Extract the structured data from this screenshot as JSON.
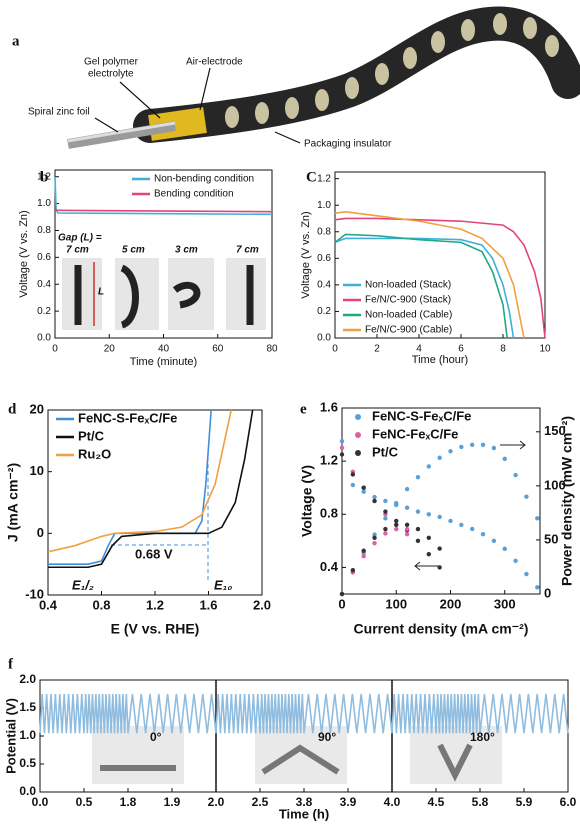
{
  "diagram": {
    "label": "a",
    "texts": [
      "Gel polymer",
      "electrolyte",
      "Air-electrode",
      "Spiral zinc foil",
      "Packaging insulator"
    ]
  },
  "chart_data": [
    {
      "type": "line",
      "label": "b",
      "xlabel": "Time (minute)",
      "ylabel": "Voltage (V vs. Zn)",
      "xlim": [
        0,
        80
      ],
      "xticks": [
        0,
        20,
        40,
        60,
        80
      ],
      "ylim": [
        0,
        1.25
      ],
      "yticks": [
        {
          "value": 0,
          "label": "0.0"
        },
        0.2,
        0.4,
        0.6,
        0.8,
        {
          "value": 1,
          "label": "1.0"
        },
        1.2
      ],
      "legend": "upper right",
      "series": [
        {
          "name": "Non-bending condition",
          "color": "#3fb0d8",
          "x": [
            0,
            0.4,
            1,
            80
          ],
          "values": [
            1.2,
            0.96,
            0.93,
            0.92
          ]
        },
        {
          "name": "Bending condition",
          "color": "#e2457a",
          "x": [
            0,
            80
          ],
          "values": [
            0.95,
            0.94
          ]
        }
      ],
      "annotations": [
        "Gap (L) =",
        "7 cm",
        "5 cm",
        "3 cm",
        "7 cm",
        "L"
      ]
    },
    {
      "type": "line",
      "label": "C",
      "xlabel": "Time (hour)",
      "ylabel": "Voltage (V vs. Zn)",
      "xlim": [
        0,
        10
      ],
      "xticks": [
        0,
        2,
        4,
        6,
        8,
        10
      ],
      "ylim": [
        0,
        1.25
      ],
      "yticks": [
        {
          "value": 0,
          "label": "0.0"
        },
        0.2,
        0.4,
        0.6,
        0.8,
        {
          "value": 1,
          "label": "1.0"
        },
        1.2
      ],
      "legend": "lower left",
      "series": [
        {
          "name": "Non-loaded (Stack)",
          "color": "#3fb0d8",
          "x": [
            0,
            0.5,
            2,
            4,
            6,
            7,
            7.5,
            8,
            8.3,
            8.5
          ],
          "values": [
            0.72,
            0.75,
            0.75,
            0.75,
            0.74,
            0.7,
            0.6,
            0.4,
            0.2,
            0
          ]
        },
        {
          "name": "Fe/N/C-900 (Stack)",
          "color": "#e2457a",
          "x": [
            0,
            0.5,
            2,
            4,
            6,
            8,
            8.5,
            9,
            9.5,
            9.8,
            10
          ],
          "values": [
            0.89,
            0.9,
            0.9,
            0.89,
            0.88,
            0.85,
            0.8,
            0.7,
            0.5,
            0.3,
            0
          ]
        },
        {
          "name": "Non-loaded (Cable)",
          "color": "#1fa88a",
          "x": [
            0,
            0.5,
            2,
            4,
            6,
            7,
            7.5,
            8,
            8.2
          ],
          "values": [
            0.72,
            0.78,
            0.77,
            0.74,
            0.72,
            0.65,
            0.5,
            0.25,
            0
          ]
        },
        {
          "name": "Fe/N/C-900 (Cable)",
          "color": "#f0a040",
          "x": [
            0,
            0.5,
            2,
            4,
            6,
            7,
            8,
            8.5,
            9
          ],
          "values": [
            0.94,
            0.95,
            0.92,
            0.88,
            0.82,
            0.75,
            0.6,
            0.4,
            0
          ]
        }
      ]
    },
    {
      "type": "line",
      "label": "d",
      "xlabel": "E (V vs. RHE)",
      "ylabel": "J (mA cm⁻²)",
      "xlim": [
        0.4,
        2.0
      ],
      "xticks": [
        0.4,
        0.8,
        1.2,
        1.6,
        {
          "value": 2,
          "label": "2.0"
        }
      ],
      "ylim": [
        -10,
        20
      ],
      "yticks": [
        -10,
        0,
        10,
        20
      ],
      "legend": "upper left",
      "series": [
        {
          "name": "FeNC-S-FeₓC/Fe",
          "color": "#3f8fd8",
          "x": [
            0.4,
            0.7,
            0.8,
            0.85,
            0.9,
            1.2,
            1.5,
            1.55,
            1.58,
            1.62
          ],
          "values": [
            -5,
            -5,
            -4.5,
            -2,
            0,
            0,
            0,
            2,
            8,
            20
          ]
        },
        {
          "name": "Pt/C",
          "color": "#111111",
          "x": [
            0.4,
            0.7,
            0.8,
            0.88,
            0.95,
            1.2,
            1.6,
            1.7,
            1.8,
            1.87,
            1.93
          ],
          "values": [
            -5.5,
            -5.5,
            -5,
            -2,
            -0.5,
            0,
            0,
            1,
            5,
            12,
            20
          ]
        },
        {
          "name": "Ru₂O",
          "color": "#f0a040",
          "x": [
            0.4,
            0.6,
            0.8,
            0.9,
            1.2,
            1.4,
            1.55,
            1.65,
            1.72,
            1.77
          ],
          "values": [
            -3,
            -2,
            -0.5,
            0,
            0.3,
            1,
            3,
            8,
            15,
            20
          ]
        }
      ],
      "annotations": [
        "0.68 V",
        "E₁/₂",
        "E₁₀"
      ]
    },
    {
      "type": "scatter",
      "label": "e",
      "xlabel": "Current density (mA cm⁻²)",
      "ylabel": "Voltage (V)",
      "y2label": "Power density (mW cm⁻²)",
      "xlim": [
        0,
        365
      ],
      "xticks": [
        0,
        100,
        200,
        300
      ],
      "ylim": [
        0.2,
        1.6
      ],
      "yticks": [
        0.4,
        0.8,
        1.2,
        1.6
      ],
      "y2lim": [
        0,
        172
      ],
      "y2ticks": [
        0,
        50,
        100,
        150
      ],
      "legend": "upper left",
      "series": [
        {
          "name": "FeNC-S-FeₓC/Fe",
          "color": "#5aa0d8",
          "x": [
            0,
            20,
            40,
            60,
            80,
            100,
            120,
            140,
            160,
            180,
            200,
            220,
            240,
            260,
            280,
            300,
            320,
            340,
            360
          ],
          "values": [
            1.35,
            1.02,
            0.97,
            0.93,
            0.9,
            0.87,
            0.85,
            0.82,
            0.8,
            0.78,
            0.75,
            0.72,
            0.69,
            0.65,
            0.6,
            0.54,
            0.45,
            0.35,
            0.25
          ]
        },
        {
          "name": "FeNC-FeₓC/Fe",
          "color": "#e060a0",
          "x": [
            0,
            20,
            40,
            60,
            80,
            100,
            120
          ],
          "values": [
            1.3,
            1.12,
            1.0,
            0.9,
            0.8,
            0.72,
            0.65
          ]
        },
        {
          "name": "Pt/C",
          "color": "#333333",
          "x": [
            0,
            20,
            40,
            60,
            80,
            100,
            120,
            140,
            160,
            180
          ],
          "values": [
            1.25,
            1.1,
            1.0,
            0.9,
            0.82,
            0.75,
            0.68,
            0.6,
            0.5,
            0.4
          ]
        },
        {
          "axis": "y2",
          "color": "#5aa0d8",
          "x": [
            0,
            20,
            40,
            60,
            80,
            100,
            120,
            140,
            160,
            180,
            200,
            220,
            240,
            260,
            280,
            300,
            320,
            340,
            360
          ],
          "values": [
            0,
            20,
            38,
            55,
            70,
            84,
            97,
            108,
            118,
            126,
            132,
            136,
            138,
            138,
            135,
            125,
            110,
            90,
            70
          ]
        },
        {
          "axis": "y2",
          "color": "#e060a0",
          "x": [
            0,
            20,
            40,
            60,
            80,
            100,
            120
          ],
          "values": [
            0,
            20,
            35,
            47,
            56,
            60,
            60
          ]
        },
        {
          "axis": "y2",
          "color": "#333333",
          "x": [
            0,
            20,
            40,
            60,
            80,
            100,
            120,
            140,
            160,
            180
          ],
          "values": [
            0,
            22,
            40,
            52,
            60,
            64,
            64,
            60,
            52,
            42
          ]
        }
      ]
    },
    {
      "type": "line",
      "label": "f",
      "xlabel": "Time (h)",
      "ylabel": "Potential (V)",
      "xscale": "broken",
      "xlim": [
        0,
        6
      ],
      "xticks": [
        {
          "value": 0,
          "label": "0.0"
        },
        0.5,
        1.8,
        1.9,
        {
          "value": 2,
          "label": "2.0"
        },
        2.5,
        3.8,
        3.9,
        {
          "value": 4,
          "label": "4.0"
        },
        4.5,
        5.8,
        5.9,
        {
          "value": 6,
          "label": "6.0"
        }
      ],
      "ylim": [
        0,
        2
      ],
      "yticks": [
        {
          "value": 0,
          "label": "0.0"
        },
        0.5,
        {
          "value": 1,
          "label": "1.0"
        },
        1.5,
        {
          "value": 2,
          "label": "2.0"
        }
      ],
      "series": [
        {
          "color": "#8fbde0",
          "x": [
            0,
            0.025,
            0.05,
            0.075,
            0.1,
            0.125,
            0.15,
            0.175,
            0.2,
            0.225,
            0.25,
            0.275,
            0.3,
            0.325,
            0.35,
            0.375,
            0.4,
            0.425,
            0.45,
            0.475,
            0.5,
            0.55,
            0.6,
            0.65,
            0.7,
            0.75,
            0.8,
            0.85,
            0.9,
            0.95,
            1,
            1.05,
            1.1,
            1.15,
            1.2,
            1.25,
            1.3,
            1.35,
            1.4,
            1.45,
            1.5,
            1.55,
            1.6,
            1.65,
            1.7,
            1.75,
            1.8,
            1.81,
            1.82,
            1.83,
            1.84,
            1.85,
            1.86,
            1.87,
            1.88,
            1.89,
            1.9,
            1.91,
            1.92,
            1.93,
            1.94,
            1.95,
            1.96,
            1.97,
            1.98,
            1.99,
            2,
            2.025,
            2.05,
            2.075,
            2.1,
            2.125,
            2.15,
            2.175,
            2.2,
            2.225,
            2.25,
            2.275,
            2.3,
            2.325,
            2.35,
            2.375,
            2.4,
            2.425,
            2.45,
            2.475,
            2.5,
            2.55,
            2.6,
            2.65,
            2.7,
            2.75,
            2.8,
            2.85,
            2.9,
            2.95,
            3,
            3.05,
            3.1,
            3.15,
            3.2,
            3.25,
            3.3,
            3.35,
            3.4,
            3.45,
            3.5,
            3.55,
            3.6,
            3.65,
            3.7,
            3.75,
            3.8,
            3.81,
            3.82,
            3.83,
            3.84,
            3.85,
            3.86,
            3.87,
            3.88,
            3.89,
            3.9,
            3.91,
            3.92,
            3.93,
            3.94,
            3.95,
            3.96,
            3.97,
            3.98,
            3.99,
            4,
            4.025,
            4.05,
            4.075,
            4.1,
            4.125,
            4.15,
            4.175,
            4.2,
            4.225,
            4.25,
            4.275,
            4.3,
            4.325,
            4.35,
            4.375,
            4.4,
            4.425,
            4.45,
            4.475,
            4.5,
            4.55,
            4.6,
            4.65,
            4.7,
            4.75,
            4.8,
            4.85,
            4.9,
            4.95,
            5,
            5.05,
            5.1,
            5.15,
            5.2,
            5.25,
            5.3,
            5.35,
            5.4,
            5.45,
            5.5,
            5.55,
            5.6,
            5.65,
            5.7,
            5.75,
            5.8,
            5.81,
            5.82,
            5.83,
            5.84,
            5.85,
            5.86,
            5.87,
            5.88,
            5.89,
            5.9,
            5.91,
            5.92,
            5.93,
            5.94,
            5.95,
            5.96,
            5.97,
            5.98,
            5.99,
            6
          ],
          "values": [
            1.05,
            1.75,
            1.05,
            1.75,
            1.05,
            1.75,
            1.05,
            1.75,
            1.05,
            1.75,
            1.05,
            1.75,
            1.05,
            1.75,
            1.05,
            1.75,
            1.05,
            1.75,
            1.05,
            1.75,
            1.05,
            1.75,
            1.05,
            1.75,
            1.05,
            1.75,
            1.05,
            1.75,
            1.05,
            1.75,
            1.05,
            1.75,
            1.05,
            1.75,
            1.05,
            1.75,
            1.05,
            1.75,
            1.05,
            1.75,
            1.05,
            1.75,
            1.05,
            1.75,
            1.05,
            1.75,
            1.05,
            1.75,
            1.05,
            1.75,
            1.05,
            1.75,
            1.05,
            1.75,
            1.05,
            1.75,
            1.05,
            1.75,
            1.05,
            1.75,
            1.05,
            1.75,
            1.05,
            1.75,
            1.05,
            1.75,
            1.05,
            1.75,
            1.05,
            1.75,
            1.05,
            1.75,
            1.05,
            1.75,
            1.05,
            1.75,
            1.05,
            1.75,
            1.05,
            1.75,
            1.05,
            1.75,
            1.05,
            1.75,
            1.05,
            1.75,
            1.05,
            1.75,
            1.05,
            1.75,
            1.05,
            1.75,
            1.05,
            1.75,
            1.05,
            1.75,
            1.05,
            1.75,
            1.05,
            1.75,
            1.05,
            1.75,
            1.05,
            1.75,
            1.05,
            1.75,
            1.05,
            1.75,
            1.05,
            1.75,
            1.05,
            1.75,
            1.05,
            1.75,
            1.05,
            1.75,
            1.05,
            1.75,
            1.05,
            1.75,
            1.05,
            1.75,
            1.05,
            1.75,
            1.05,
            1.75,
            1.05,
            1.75,
            1.05,
            1.75,
            1.05,
            1.75,
            1.05,
            1.75,
            1.05,
            1.75,
            1.05,
            1.75,
            1.05,
            1.75,
            1.05,
            1.75,
            1.05,
            1.75,
            1.05,
            1.75,
            1.05,
            1.75,
            1.05,
            1.75,
            1.05,
            1.75,
            1.05,
            1.75,
            1.05,
            1.75,
            1.05,
            1.75,
            1.05,
            1.75,
            1.05,
            1.75,
            1.05,
            1.75,
            1.05,
            1.75,
            1.05,
            1.75,
            1.05,
            1.75,
            1.05,
            1.75,
            1.05,
            1.75,
            1.05,
            1.75,
            1.05,
            1.75,
            1.05,
            1.75,
            1.05,
            1.75,
            1.05,
            1.75,
            1.05,
            1.75,
            1.05,
            1.75,
            1.05,
            1.75,
            1.05,
            1.75,
            1.05,
            1.75,
            1.05,
            1.75,
            1.05,
            1.75,
            1.05
          ]
        }
      ],
      "annotations": [
        "0°",
        "90°",
        "180°"
      ]
    }
  ]
}
